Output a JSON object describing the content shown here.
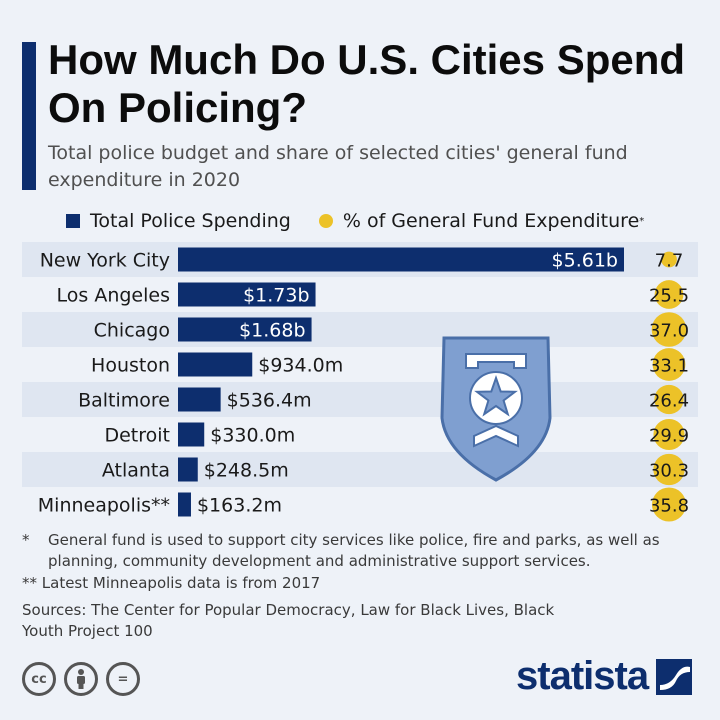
{
  "header": {
    "title": "How Much Do U.S. Cities Spend On Policing?",
    "subtitle": "Total police budget and share of selected cities' general fund expenditure in 2020"
  },
  "legend": {
    "spending_label": "Total Police Spending",
    "share_label": "% of General Fund Expenditure",
    "share_marker": "*"
  },
  "colors": {
    "bar": "#0d2e6e",
    "bubble": "#ecc228",
    "row_band": "#dfe6f1",
    "badge": "#7f9fd0"
  },
  "chart_data": {
    "type": "bar",
    "orientation": "horizontal",
    "title": "How Much Do U.S. Cities Spend On Policing?",
    "series": [
      {
        "name": "Total Police Spending",
        "unit": "USD",
        "values": [
          5610000000,
          1730000000,
          1680000000,
          934000000,
          536400000,
          330000000,
          248500000,
          163200000
        ]
      },
      {
        "name": "% of General Fund Expenditure",
        "unit": "percent",
        "values": [
          7.7,
          25.5,
          37.0,
          33.1,
          26.4,
          29.9,
          30.3,
          35.8
        ]
      }
    ],
    "categories": [
      "New York City",
      "Los Angeles",
      "Chicago",
      "Houston",
      "Baltimore",
      "Detroit",
      "Atlanta",
      "Minneapolis**"
    ],
    "value_labels": [
      "$5.61b",
      "$1.73b",
      "$1.68b",
      "$934.0m",
      "$536.4m",
      "$330.0m",
      "$248.5m",
      "$163.2m"
    ],
    "share_labels": [
      "7.7",
      "25.5",
      "37.0",
      "33.1",
      "26.4",
      "29.9",
      "30.3",
      "35.8"
    ],
    "xlim": [
      0,
      5610000000
    ]
  },
  "footnotes": {
    "star": "*",
    "general_fund": "General fund is used to support city services like police, fire and parks, as well as planning, community development and administrative support services.",
    "minneapolis": "** Latest Minneapolis data is from 2017",
    "sources": "Sources: The Center for Popular Democracy, Law for Black Lives, Black Youth Project 100"
  },
  "icons": [
    "police-badge-icon",
    "cc-icon",
    "by-icon",
    "nd-icon",
    "statista-logo-icon"
  ],
  "license": {
    "cc": "cc",
    "nd": "="
  },
  "brand": {
    "name": "statista"
  }
}
